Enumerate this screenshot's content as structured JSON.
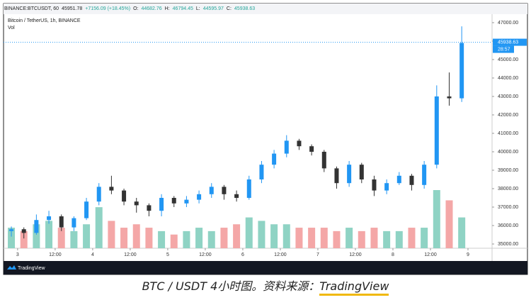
{
  "header": {
    "symbol": "BINANCE:BTCUSDT, 60",
    "price": "45951.78",
    "change": "+7156.09 (+18.45%)",
    "ohlc": [
      {
        "key": "O:",
        "value": "44682.76"
      },
      {
        "key": "H:",
        "value": "46794.45"
      },
      {
        "key": "L:",
        "value": "44595.97"
      },
      {
        "key": "C:",
        "value": "45938.63"
      }
    ]
  },
  "legend": {
    "instrument": "Bitcoin / TetherUS, 1h, BINANCE",
    "volume": "Vol"
  },
  "footer": {
    "brand": "TradingView"
  },
  "caption": {
    "text": "BTC / USDT 4小时图。资料来源：",
    "source": "TradingView"
  },
  "chart_data": {
    "type": "candlestick",
    "x": [
      -2,
      2,
      6,
      10,
      14,
      18,
      22,
      26,
      30,
      34,
      38,
      42,
      46,
      50,
      54,
      58,
      62,
      66,
      70,
      74,
      78,
      82,
      86,
      90,
      94,
      98,
      102,
      106,
      110,
      114,
      118,
      122,
      126,
      130,
      134,
      138,
      142
    ],
    "open": [
      35700,
      35800,
      35600,
      36300,
      36500,
      35900,
      36400,
      37300,
      38100,
      37900,
      37300,
      37100,
      36800,
      37500,
      37200,
      37400,
      37700,
      38100,
      37700,
      37500,
      38500,
      39300,
      39900,
      40600,
      40300,
      40000,
      39100,
      38300,
      39300,
      38500,
      37900,
      38300,
      38700,
      38200,
      39300,
      43000,
      42900
    ],
    "high": [
      35950,
      35900,
      36600,
      36800,
      36600,
      36500,
      37500,
      38300,
      38700,
      38000,
      37500,
      37200,
      37700,
      37600,
      37600,
      37900,
      38300,
      38200,
      37900,
      38700,
      39500,
      40100,
      40900,
      40700,
      40400,
      40100,
      39200,
      39500,
      39400,
      38700,
      38500,
      38900,
      38800,
      39500,
      43600,
      44300,
      46800
    ],
    "low": [
      35400,
      35300,
      35500,
      36100,
      35700,
      35700,
      36300,
      37100,
      37700,
      37100,
      36700,
      36500,
      36500,
      37000,
      37000,
      37200,
      37500,
      37400,
      37300,
      37400,
      38300,
      39100,
      39700,
      40100,
      39800,
      38900,
      38000,
      38100,
      38300,
      37600,
      37700,
      38200,
      37900,
      38000,
      39100,
      42500,
      42700
    ],
    "close": [
      35800,
      35600,
      36300,
      36500,
      35900,
      36400,
      37300,
      38100,
      37900,
      37300,
      37100,
      36800,
      37500,
      37200,
      37400,
      37700,
      38100,
      37700,
      37500,
      38500,
      39300,
      39900,
      40600,
      40300,
      40000,
      39100,
      38300,
      39300,
      38500,
      37900,
      38300,
      38700,
      38200,
      39300,
      43000,
      42900,
      45900
    ],
    "volume": [
      30,
      25,
      35,
      40,
      30,
      25,
      35,
      60,
      40,
      30,
      35,
      30,
      25,
      20,
      25,
      30,
      25,
      30,
      35,
      45,
      40,
      35,
      35,
      30,
      30,
      30,
      25,
      30,
      25,
      30,
      25,
      25,
      30,
      30,
      85,
      70,
      45
    ],
    "up_color": "#2196f3",
    "down_color": "#333333",
    "vol_up_color": "#8fd3c4",
    "vol_down_color": "#f4a7a7",
    "xlim": [
      -4.5,
      151.7
    ],
    "ylim": [
      34770,
      47460
    ],
    "xticks": [
      {
        "value": 0,
        "label": "3"
      },
      {
        "value": 12,
        "label": "12:00"
      },
      {
        "value": 24,
        "label": "4"
      },
      {
        "value": 36,
        "label": "12:00"
      },
      {
        "value": 48,
        "label": "5"
      },
      {
        "value": 60,
        "label": "12:00"
      },
      {
        "value": 72,
        "label": "6"
      },
      {
        "value": 84,
        "label": "12:00"
      },
      {
        "value": 96,
        "label": "7"
      },
      {
        "value": 108,
        "label": "12:00"
      },
      {
        "value": 120,
        "label": "8"
      },
      {
        "value": 132,
        "label": "12:00"
      },
      {
        "value": 144,
        "label": "9"
      }
    ],
    "yticks": [
      {
        "value": 35000,
        "label": "35000.00"
      },
      {
        "value": 36000,
        "label": "36000.00"
      },
      {
        "value": 37000,
        "label": "37000.00"
      },
      {
        "value": 38000,
        "label": "38000.00"
      },
      {
        "value": 39000,
        "label": "39000.00"
      },
      {
        "value": 40000,
        "label": "40000.00"
      },
      {
        "value": 41000,
        "label": "41000.00"
      },
      {
        "value": 42000,
        "label": "42000.00"
      },
      {
        "value": 43000,
        "label": "43000.00"
      },
      {
        "value": 44000,
        "label": "44000.00"
      },
      {
        "value": 45000,
        "label": "45000.00"
      },
      {
        "value": 46000,
        "label": "46000.00"
      },
      {
        "value": 47000,
        "label": "47000.00"
      }
    ],
    "last_price": 45938.63,
    "countdown": "28:57",
    "grid": false
  }
}
